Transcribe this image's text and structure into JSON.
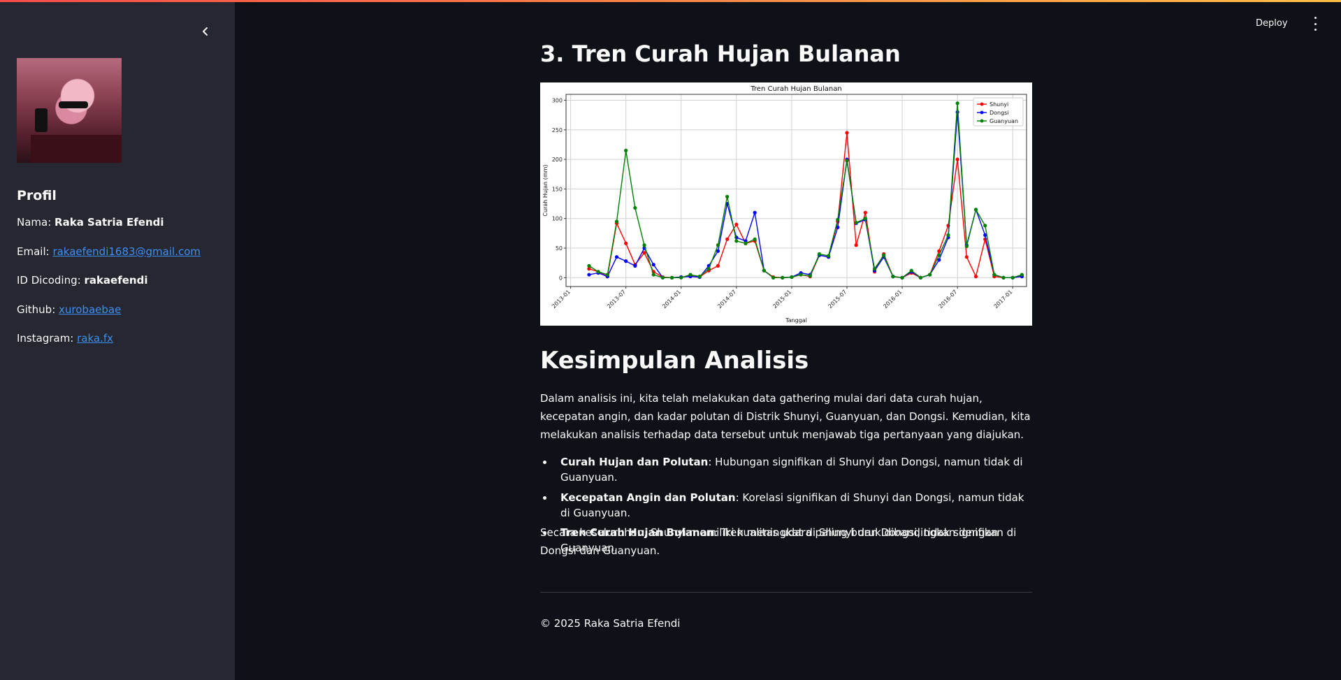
{
  "header": {
    "deploy_label": "Deploy",
    "menu_icon": "kebab-menu-icon"
  },
  "sidebar": {
    "collapse_icon": "chevron-left-icon",
    "avatar": "profile-photo",
    "heading": "Profil",
    "rows": [
      {
        "label": "Nama: ",
        "value": "Raka Satria Efendi"
      },
      {
        "label": "Email: ",
        "value": "rakaefendi1683@gmail.com"
      },
      {
        "label": "ID Dicoding: ",
        "value": "rakaefendi"
      },
      {
        "label": "Github: ",
        "value": "xurobaebae"
      },
      {
        "label": "Instagram: ",
        "value": "raka.fx"
      }
    ]
  },
  "section3": {
    "title": "3. Tren Curah Hujan Bulanan"
  },
  "chart_data": {
    "type": "line",
    "title": "Tren Curah Hujan Bulanan",
    "xlabel": "Tanggal",
    "ylabel": "Curah Hujan (mm)",
    "ylim": [
      -15,
      310
    ],
    "yticks": [
      0,
      50,
      100,
      150,
      200,
      250,
      300
    ],
    "xticks": [
      "2013-01",
      "2013-07",
      "2014-01",
      "2014-07",
      "2015-01",
      "2015-07",
      "2016-01",
      "2016-07",
      "2017-01"
    ],
    "x": [
      "2013-03",
      "2013-04",
      "2013-05",
      "2013-06",
      "2013-07",
      "2013-08",
      "2013-09",
      "2013-10",
      "2013-11",
      "2013-12",
      "2014-01",
      "2014-02",
      "2014-03",
      "2014-04",
      "2014-05",
      "2014-06",
      "2014-07",
      "2014-08",
      "2014-09",
      "2014-10",
      "2014-11",
      "2014-12",
      "2015-01",
      "2015-02",
      "2015-03",
      "2015-04",
      "2015-05",
      "2015-06",
      "2015-07",
      "2015-08",
      "2015-09",
      "2015-10",
      "2015-11",
      "2015-12",
      "2016-01",
      "2016-02",
      "2016-03",
      "2016-04",
      "2016-05",
      "2016-06",
      "2016-07",
      "2016-08",
      "2016-09",
      "2016-10",
      "2016-11",
      "2016-12",
      "2017-01",
      "2017-02"
    ],
    "series": [
      {
        "name": "Shunyi",
        "color": "#ff0000",
        "values": [
          15,
          10,
          2,
          92,
          58,
          22,
          42,
          10,
          1,
          0,
          1,
          3,
          1,
          12,
          20,
          65,
          90,
          58,
          62,
          12,
          1,
          0,
          1,
          5,
          2,
          38,
          35,
          95,
          245,
          55,
          110,
          10,
          40,
          2,
          0,
          8,
          0,
          5,
          45,
          88,
          200,
          35,
          2,
          65,
          2,
          0,
          0,
          3
        ]
      },
      {
        "name": "Dongsi",
        "color": "#0000ff",
        "values": [
          5,
          8,
          2,
          35,
          28,
          20,
          50,
          22,
          0,
          0,
          1,
          2,
          1,
          20,
          45,
          125,
          68,
          62,
          110,
          12,
          0,
          0,
          1,
          8,
          5,
          38,
          35,
          85,
          200,
          92,
          98,
          12,
          35,
          2,
          0,
          10,
          0,
          5,
          30,
          68,
          280,
          55,
          115,
          72,
          5,
          0,
          0,
          2
        ]
      },
      {
        "name": "Guanyuan",
        "color": "#008000",
        "values": [
          20,
          10,
          5,
          95,
          215,
          118,
          55,
          5,
          0,
          0,
          0,
          5,
          2,
          15,
          55,
          137,
          62,
          58,
          65,
          12,
          0,
          0,
          1,
          5,
          3,
          40,
          37,
          98,
          198,
          93,
          100,
          15,
          38,
          2,
          0,
          12,
          0,
          5,
          38,
          72,
          295,
          53,
          115,
          88,
          5,
          0,
          0,
          5
        ]
      }
    ],
    "legend": "top-right",
    "grid": true
  },
  "conclusion": {
    "title": "Kesimpulan Analisis",
    "intro": "Dalam analisis ini, kita telah melakukan data gathering mulai dari data curah hujan, kecepatan angin, dan kadar polutan di Distrik Shunyi, Guanyuan, dan Dongsi. Kemudian, kita melakukan analisis terhadap data tersebut untuk menjawab tiga pertanyaan yang diajukan.",
    "bullets": [
      {
        "bold": "Curah Hujan dan Polutan",
        "text": ": Hubungan signifikan di Shunyi dan Dongsi, namun tidak di Guanyuan."
      },
      {
        "bold": "Kecepatan Angin dan Polutan",
        "text": ": Korelasi signifikan di Shunyi dan Dongsi, namun tidak di Guanyuan."
      },
      {
        "bold": "Tren Curah Hujan Bulanan",
        "text": ": Tren meningkat di Shunyi dan Dongsi, tidak signifikan di Guanyuan."
      }
    ],
    "summary": "Secara keseluruhan, Shunyi memiliki kualitas udara paling buruk dibandingkan dengan Dongsi dan Guanyuan."
  },
  "footer": {
    "text": "© 2025 Raka Satria Efendi"
  }
}
